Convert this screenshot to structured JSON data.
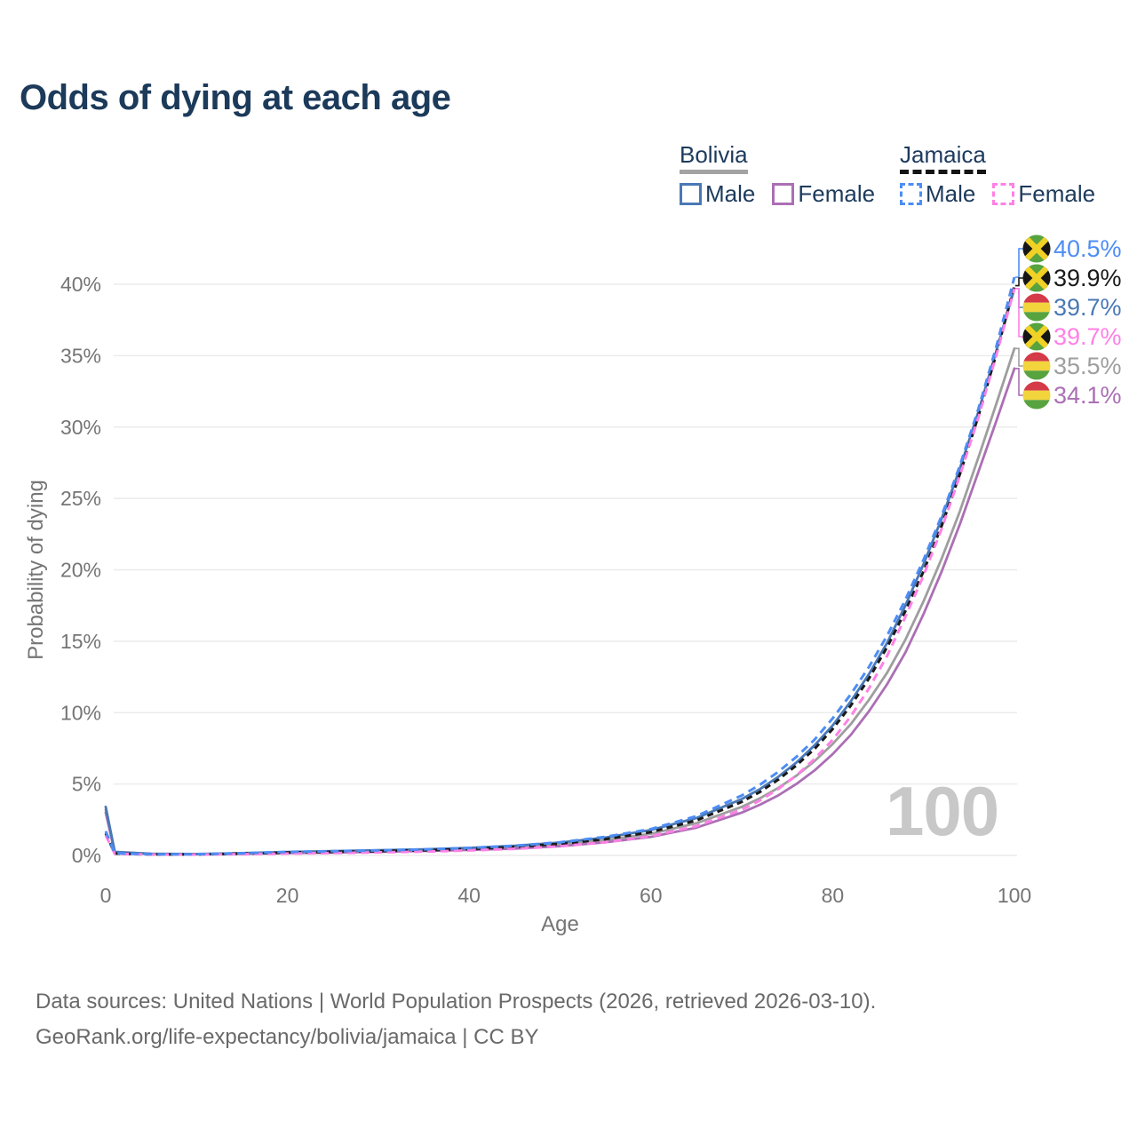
{
  "title": "Odds of dying at each age",
  "watermark_age": "100",
  "legend": {
    "groups": [
      {
        "label": "Bolivia",
        "line_style": "solid",
        "underline_color": "#a3a3a3",
        "items": [
          {
            "label": "Male",
            "color": "#4a78b5"
          },
          {
            "label": "Female",
            "color": "#ab6fb4"
          }
        ]
      },
      {
        "label": "Jamaica",
        "line_style": "dashed",
        "underline_color": "#141414",
        "items": [
          {
            "label": "Male",
            "color": "#4d8df5"
          },
          {
            "label": "Female",
            "color": "#ff80e5"
          }
        ]
      }
    ]
  },
  "chart_data": {
    "type": "line",
    "title": "Odds of dying at each age",
    "xlabel": "Age",
    "ylabel": "Probability of dying",
    "xlim": [
      0,
      100
    ],
    "ylim": [
      0,
      43
    ],
    "grid": "horizontal",
    "x_ticks": [
      0,
      20,
      40,
      60,
      80,
      100
    ],
    "y_ticks": [
      {
        "value": 0,
        "label": "0%"
      },
      {
        "value": 5,
        "label": "5%"
      },
      {
        "value": 10,
        "label": "10%"
      },
      {
        "value": 15,
        "label": "15%"
      },
      {
        "value": 20,
        "label": "20%"
      },
      {
        "value": 25,
        "label": "25%"
      },
      {
        "value": 30,
        "label": "30%"
      },
      {
        "value": 35,
        "label": "35%"
      },
      {
        "value": 40,
        "label": "40%"
      }
    ],
    "ages": [
      0,
      1,
      5,
      10,
      15,
      20,
      25,
      30,
      35,
      40,
      45,
      50,
      55,
      60,
      65,
      70,
      72,
      74,
      76,
      78,
      80,
      82,
      84,
      86,
      88,
      90,
      92,
      94,
      96,
      98,
      100
    ],
    "series": [
      {
        "name": "Bolivia total",
        "country": "Bolivia",
        "group": "total",
        "color": "#9e9e9e",
        "dashed": false,
        "end_value": 35.5,
        "end_label": "35.5%",
        "values": [
          3.2,
          0.23,
          0.11,
          0.09,
          0.14,
          0.2,
          0.25,
          0.3,
          0.37,
          0.45,
          0.57,
          0.77,
          1.07,
          1.52,
          2.25,
          3.4,
          4.0,
          4.72,
          5.58,
          6.6,
          7.8,
          9.2,
          10.9,
          12.8,
          15.1,
          17.8,
          20.8,
          24.1,
          27.8,
          31.6,
          35.5
        ]
      },
      {
        "name": "Bolivia Female",
        "country": "Bolivia",
        "group": "female",
        "color": "#ab6fb4",
        "dashed": false,
        "end_value": 34.1,
        "end_label": "34.1%",
        "values": [
          3.0,
          0.21,
          0.1,
          0.08,
          0.11,
          0.16,
          0.2,
          0.25,
          0.31,
          0.38,
          0.48,
          0.65,
          0.92,
          1.3,
          1.95,
          3.0,
          3.55,
          4.2,
          5.0,
          5.95,
          7.1,
          8.45,
          10.1,
          12.0,
          14.2,
          16.9,
          19.9,
          23.2,
          26.8,
          30.4,
          34.1
        ]
      },
      {
        "name": "Bolivia Male",
        "country": "Bolivia",
        "group": "male",
        "color": "#4a78b5",
        "dashed": false,
        "end_value": 39.7,
        "end_label": "39.7%",
        "values": [
          3.4,
          0.25,
          0.12,
          0.1,
          0.16,
          0.24,
          0.3,
          0.36,
          0.43,
          0.53,
          0.68,
          0.9,
          1.25,
          1.78,
          2.62,
          3.95,
          4.65,
          5.5,
          6.5,
          7.7,
          9.1,
          10.8,
          12.7,
          14.9,
          17.5,
          20.4,
          23.6,
          27.1,
          31.0,
          35.3,
          39.7
        ]
      },
      {
        "name": "Jamaica total",
        "country": "Jamaica",
        "group": "total",
        "color": "#1a1a1a",
        "dashed": true,
        "end_value": 39.9,
        "end_label": "39.9%",
        "values": [
          1.55,
          0.13,
          0.07,
          0.07,
          0.12,
          0.2,
          0.25,
          0.3,
          0.36,
          0.45,
          0.59,
          0.81,
          1.14,
          1.63,
          2.45,
          3.75,
          4.45,
          5.3,
          6.3,
          7.45,
          8.85,
          10.5,
          12.4,
          14.6,
          17.1,
          19.9,
          23.1,
          26.7,
          30.7,
          35.1,
          39.9
        ]
      },
      {
        "name": "Jamaica Female",
        "country": "Jamaica",
        "group": "female",
        "color": "#ff80e5",
        "dashed": true,
        "end_value": 39.7,
        "end_label": "39.7%",
        "values": [
          1.4,
          0.12,
          0.06,
          0.06,
          0.09,
          0.13,
          0.17,
          0.21,
          0.27,
          0.35,
          0.46,
          0.64,
          0.92,
          1.35,
          2.05,
          3.2,
          3.85,
          4.65,
          5.6,
          6.75,
          8.1,
          9.75,
          11.7,
          14.0,
          16.7,
          19.6,
          22.9,
          26.6,
          30.6,
          35.0,
          39.7
        ]
      },
      {
        "name": "Jamaica Male",
        "country": "Jamaica",
        "group": "male",
        "color": "#4d8df5",
        "dashed": true,
        "end_value": 40.5,
        "end_label": "40.5%",
        "values": [
          1.7,
          0.15,
          0.08,
          0.08,
          0.15,
          0.25,
          0.3,
          0.35,
          0.42,
          0.52,
          0.68,
          0.92,
          1.3,
          1.85,
          2.75,
          4.2,
          4.95,
          5.85,
          6.9,
          8.1,
          9.6,
          11.3,
          13.2,
          15.4,
          17.9,
          20.7,
          23.8,
          27.3,
          31.2,
          35.6,
          40.5
        ]
      }
    ],
    "end_labels": [
      {
        "series": "Jamaica Male",
        "flag": "jamaica-flag-icon",
        "text": "40.5%",
        "color": "#4d8df5"
      },
      {
        "series": "Jamaica total",
        "flag": "jamaica-flag-icon",
        "text": "39.9%",
        "color": "#1a1a1a"
      },
      {
        "series": "Bolivia Male",
        "flag": "bolivia-flag-icon",
        "text": "39.7%",
        "color": "#4a78b5"
      },
      {
        "series": "Jamaica Female",
        "flag": "jamaica-flag-icon",
        "text": "39.7%",
        "color": "#ff80e5"
      },
      {
        "series": "Bolivia total",
        "flag": "bolivia-flag-icon",
        "text": "35.5%",
        "color": "#9e9e9e"
      },
      {
        "series": "Bolivia Female",
        "flag": "bolivia-flag-icon",
        "text": "34.1%",
        "color": "#ab6fb4"
      }
    ],
    "flag_colors": {
      "jamaica": {
        "green": "#57a33f",
        "gold": "#f0d125",
        "black": "#161616"
      },
      "bolivia": {
        "red": "#d43a47",
        "yellow": "#f2d43c",
        "green": "#57a33f"
      }
    }
  },
  "footer": {
    "line1": "Data sources: United Nations | World Population Prospects (2026, retrieved 2026-03-10).",
    "line2": "GeoRank.org/life-expectancy/bolivia/jamaica | CC BY"
  }
}
